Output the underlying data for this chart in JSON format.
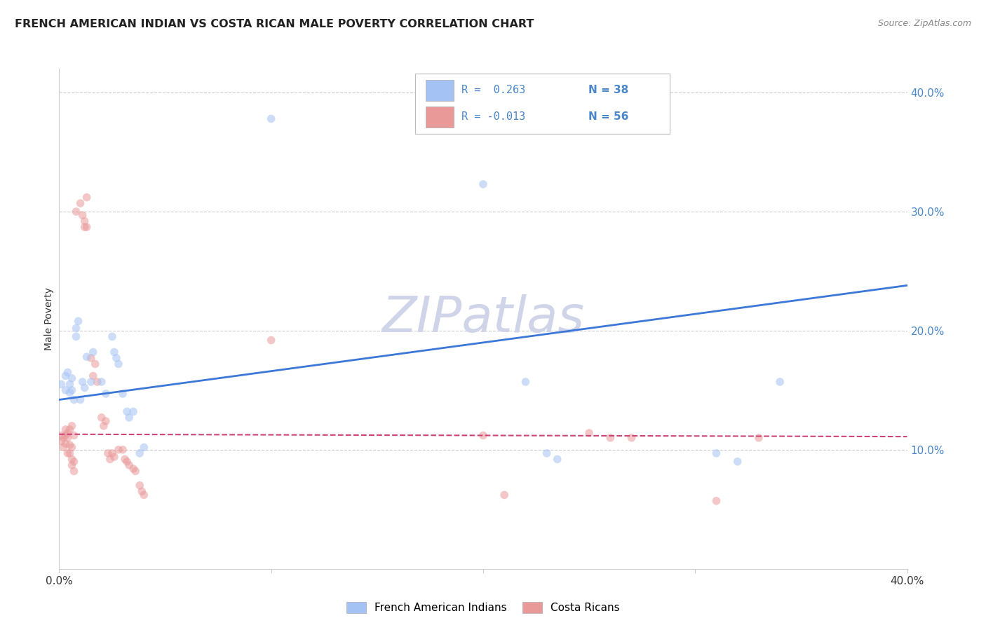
{
  "title": "FRENCH AMERICAN INDIAN VS COSTA RICAN MALE POVERTY CORRELATION CHART",
  "source": "Source: ZipAtlas.com",
  "ylabel": "Male Poverty",
  "watermark": "ZIPatlas",
  "legend_blue_r": "R =  0.263",
  "legend_blue_n": "N = 38",
  "legend_pink_r": "R = -0.013",
  "legend_pink_n": "N = 56",
  "legend_label_blue": "French American Indians",
  "legend_label_pink": "Costa Ricans",
  "blue_scatter": [
    [
      0.001,
      0.155
    ],
    [
      0.003,
      0.15
    ],
    [
      0.003,
      0.162
    ],
    [
      0.004,
      0.165
    ],
    [
      0.005,
      0.148
    ],
    [
      0.005,
      0.155
    ],
    [
      0.006,
      0.15
    ],
    [
      0.006,
      0.16
    ],
    [
      0.007,
      0.142
    ],
    [
      0.008,
      0.195
    ],
    [
      0.008,
      0.202
    ],
    [
      0.009,
      0.208
    ],
    [
      0.01,
      0.142
    ],
    [
      0.011,
      0.157
    ],
    [
      0.012,
      0.152
    ],
    [
      0.013,
      0.178
    ],
    [
      0.015,
      0.157
    ],
    [
      0.016,
      0.182
    ],
    [
      0.02,
      0.157
    ],
    [
      0.022,
      0.147
    ],
    [
      0.025,
      0.195
    ],
    [
      0.026,
      0.182
    ],
    [
      0.027,
      0.177
    ],
    [
      0.028,
      0.172
    ],
    [
      0.03,
      0.147
    ],
    [
      0.032,
      0.132
    ],
    [
      0.033,
      0.127
    ],
    [
      0.035,
      0.132
    ],
    [
      0.038,
      0.097
    ],
    [
      0.04,
      0.102
    ],
    [
      0.1,
      0.378
    ],
    [
      0.2,
      0.323
    ],
    [
      0.22,
      0.157
    ],
    [
      0.23,
      0.097
    ],
    [
      0.235,
      0.092
    ],
    [
      0.31,
      0.097
    ],
    [
      0.32,
      0.09
    ],
    [
      0.34,
      0.157
    ]
  ],
  "pink_scatter": [
    [
      0.001,
      0.112
    ],
    [
      0.001,
      0.107
    ],
    [
      0.002,
      0.11
    ],
    [
      0.002,
      0.102
    ],
    [
      0.003,
      0.117
    ],
    [
      0.003,
      0.112
    ],
    [
      0.003,
      0.105
    ],
    [
      0.004,
      0.114
    ],
    [
      0.004,
      0.11
    ],
    [
      0.004,
      0.097
    ],
    [
      0.005,
      0.117
    ],
    [
      0.005,
      0.104
    ],
    [
      0.005,
      0.097
    ],
    [
      0.006,
      0.12
    ],
    [
      0.006,
      0.102
    ],
    [
      0.006,
      0.092
    ],
    [
      0.006,
      0.087
    ],
    [
      0.007,
      0.112
    ],
    [
      0.007,
      0.09
    ],
    [
      0.007,
      0.082
    ],
    [
      0.008,
      0.3
    ],
    [
      0.01,
      0.307
    ],
    [
      0.011,
      0.297
    ],
    [
      0.012,
      0.292
    ],
    [
      0.012,
      0.287
    ],
    [
      0.013,
      0.312
    ],
    [
      0.013,
      0.287
    ],
    [
      0.015,
      0.177
    ],
    [
      0.016,
      0.162
    ],
    [
      0.017,
      0.172
    ],
    [
      0.018,
      0.157
    ],
    [
      0.02,
      0.127
    ],
    [
      0.021,
      0.12
    ],
    [
      0.022,
      0.124
    ],
    [
      0.023,
      0.097
    ],
    [
      0.024,
      0.092
    ],
    [
      0.025,
      0.097
    ],
    [
      0.026,
      0.094
    ],
    [
      0.028,
      0.1
    ],
    [
      0.03,
      0.1
    ],
    [
      0.031,
      0.092
    ],
    [
      0.032,
      0.09
    ],
    [
      0.033,
      0.087
    ],
    [
      0.035,
      0.084
    ],
    [
      0.036,
      0.082
    ],
    [
      0.038,
      0.07
    ],
    [
      0.039,
      0.065
    ],
    [
      0.04,
      0.062
    ],
    [
      0.1,
      0.192
    ],
    [
      0.2,
      0.112
    ],
    [
      0.21,
      0.062
    ],
    [
      0.25,
      0.114
    ],
    [
      0.26,
      0.11
    ],
    [
      0.27,
      0.11
    ],
    [
      0.31,
      0.057
    ],
    [
      0.33,
      0.11
    ]
  ],
  "blue_line": [
    [
      0.0,
      0.142
    ],
    [
      0.4,
      0.238
    ]
  ],
  "pink_line": [
    [
      0.0,
      0.113
    ],
    [
      0.4,
      0.111
    ]
  ],
  "xlim": [
    0.0,
    0.4
  ],
  "ylim": [
    0.0,
    0.42
  ],
  "ytick_positions": [
    0.1,
    0.2,
    0.3,
    0.4
  ],
  "ytick_labels": [
    "10.0%",
    "20.0%",
    "30.0%",
    "40.0%"
  ],
  "xtick_positions": [
    0.0,
    0.1,
    0.2,
    0.3,
    0.4
  ],
  "grid_color": "#cccccc",
  "blue_color": "#a4c2f4",
  "blue_line_color": "#3c78d8",
  "pink_color": "#ea9999",
  "pink_line_color": "#cc4477",
  "tick_color": "#4a86c8",
  "background_color": "#ffffff",
  "title_fontsize": 11.5,
  "source_fontsize": 9,
  "watermark_fontsize": 52,
  "scatter_size": 70,
  "scatter_alpha": 0.55
}
